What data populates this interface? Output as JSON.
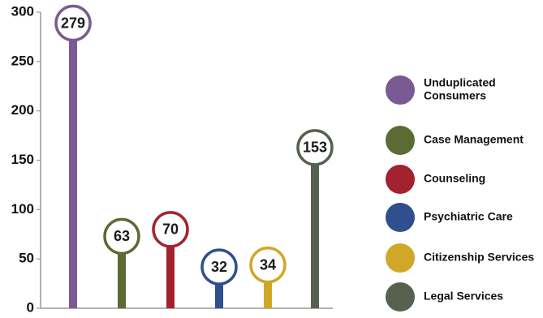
{
  "chart_data": {
    "type": "bar",
    "ylim": [
      0,
      300
    ],
    "yticks": [
      0,
      50,
      100,
      150,
      200,
      250,
      300
    ],
    "grid": false,
    "legend_position": "right",
    "series": [
      {
        "name": "Unduplicated Consumers",
        "value": 279,
        "label": "279",
        "color": "#7b5a93"
      },
      {
        "name": "Case Management",
        "value": 63,
        "label": "63",
        "color": "#5c6a33"
      },
      {
        "name": "Counseling",
        "value": 70,
        "label": "70",
        "color": "#a3222f"
      },
      {
        "name": "Psychiatric Care",
        "value": 32,
        "label": "32",
        "color": "#2f4f8f"
      },
      {
        "name": "Citizenship Services",
        "value": 34,
        "label": "34",
        "color": "#d1a729"
      },
      {
        "name": "Legal Services",
        "value": 153,
        "label": "153",
        "color": "#56614f"
      }
    ],
    "legend": [
      {
        "label_lines": [
          "Unduplicated",
          "Consumers"
        ],
        "color": "#7b5a93"
      },
      {
        "label_lines": [
          "Case Management"
        ],
        "color": "#5c6a33"
      },
      {
        "label_lines": [
          "Counseling"
        ],
        "color": "#a3222f"
      },
      {
        "label_lines": [
          "Psychiatric Care"
        ],
        "color": "#2f4f8f"
      },
      {
        "label_lines": [
          "Citizenship Services"
        ],
        "color": "#d1a729"
      },
      {
        "label_lines": [
          "Legal Services"
        ],
        "color": "#56614f"
      }
    ]
  }
}
